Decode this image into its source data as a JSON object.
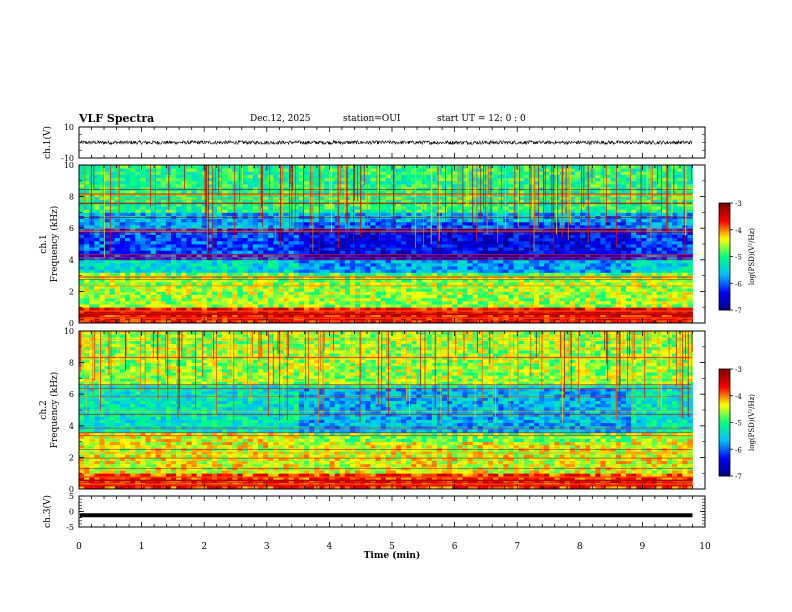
{
  "header": {
    "title": "VLF Spectra",
    "date": "Dec.12, 2025",
    "station": "station=OUI",
    "start": "start UT =  12: 0 : 0"
  },
  "chart_data": [
    {
      "type": "line",
      "panel": "ch1-waveform",
      "ylabel": "ch.1(V)",
      "ylim": [
        -10,
        10
      ],
      "yticks": [
        "10",
        "-10"
      ],
      "xlim": [
        0,
        10
      ],
      "series": [
        {
          "description_value_level": 0,
          "amplitude_band": [
            -1.2,
            1.2
          ]
        }
      ]
    },
    {
      "type": "heatmap",
      "panel": "ch1-spectrogram",
      "ylabel": [
        "ch.1",
        "Frequency (kHz)"
      ],
      "ylim": [
        0,
        10
      ],
      "yticks": [
        "0",
        "2",
        "4",
        "6",
        "8",
        "10"
      ],
      "xlim": [
        0,
        9.8
      ],
      "bands": [
        {
          "f0": 0,
          "f1": 1,
          "level": -3.6
        },
        {
          "f0": 1,
          "f1": 3.2,
          "level": -4.6
        },
        {
          "f0": 3.2,
          "f1": 4,
          "level": -5.4
        },
        {
          "f0": 4,
          "f1": 6,
          "level": -6.1
        },
        {
          "f0": 6,
          "f1": 7,
          "level": -5.7
        },
        {
          "f0": 7,
          "f1": 10,
          "level": -5.0
        }
      ],
      "colorbar": {
        "label": "log(PSD)(V²/Hz)",
        "range": [
          -7,
          -3
        ],
        "ticks": [
          "-3",
          "-4",
          "-5",
          "-6",
          "-7"
        ]
      }
    },
    {
      "type": "heatmap",
      "panel": "ch2-spectrogram",
      "ylabel": [
        "ch.2",
        "Frequency (kHz)"
      ],
      "ylim": [
        0,
        10
      ],
      "yticks": [
        "0",
        "2",
        "4",
        "6",
        "8",
        "10"
      ],
      "xlim": [
        0,
        9.8
      ],
      "bands": [
        {
          "f0": 0,
          "f1": 1,
          "level": -3.8
        },
        {
          "f0": 1,
          "f1": 3.6,
          "level": -4.4
        },
        {
          "f0": 3.6,
          "f1": 6.5,
          "level": -5.3
        },
        {
          "f0": 6.5,
          "f1": 10,
          "level": -4.6
        }
      ],
      "colorbar": {
        "label": "log(PSD)(V²/Hz)",
        "range": [
          -7,
          -3
        ],
        "ticks": [
          "-3",
          "-4",
          "-5",
          "-6",
          "-7"
        ]
      }
    },
    {
      "type": "line",
      "panel": "ch3-waveform",
      "ylabel": "ch.3(V)",
      "ylim": [
        -5,
        5
      ],
      "yticks": [
        "5",
        "0",
        "-5"
      ],
      "xlim": [
        0,
        10
      ],
      "series": [
        {
          "constant_value": -1.2
        }
      ]
    }
  ],
  "xaxis": {
    "label": "Time (min)",
    "ticks": [
      "0",
      "1",
      "2",
      "3",
      "4",
      "5",
      "6",
      "7",
      "8",
      "9",
      "10"
    ]
  },
  "colors": {
    "waveform": "#000000",
    "colormap": [
      "#00007f",
      "#0000ff",
      "#00bfff",
      "#00ff80",
      "#ffff00",
      "#ff0000",
      "#7f0000"
    ]
  }
}
